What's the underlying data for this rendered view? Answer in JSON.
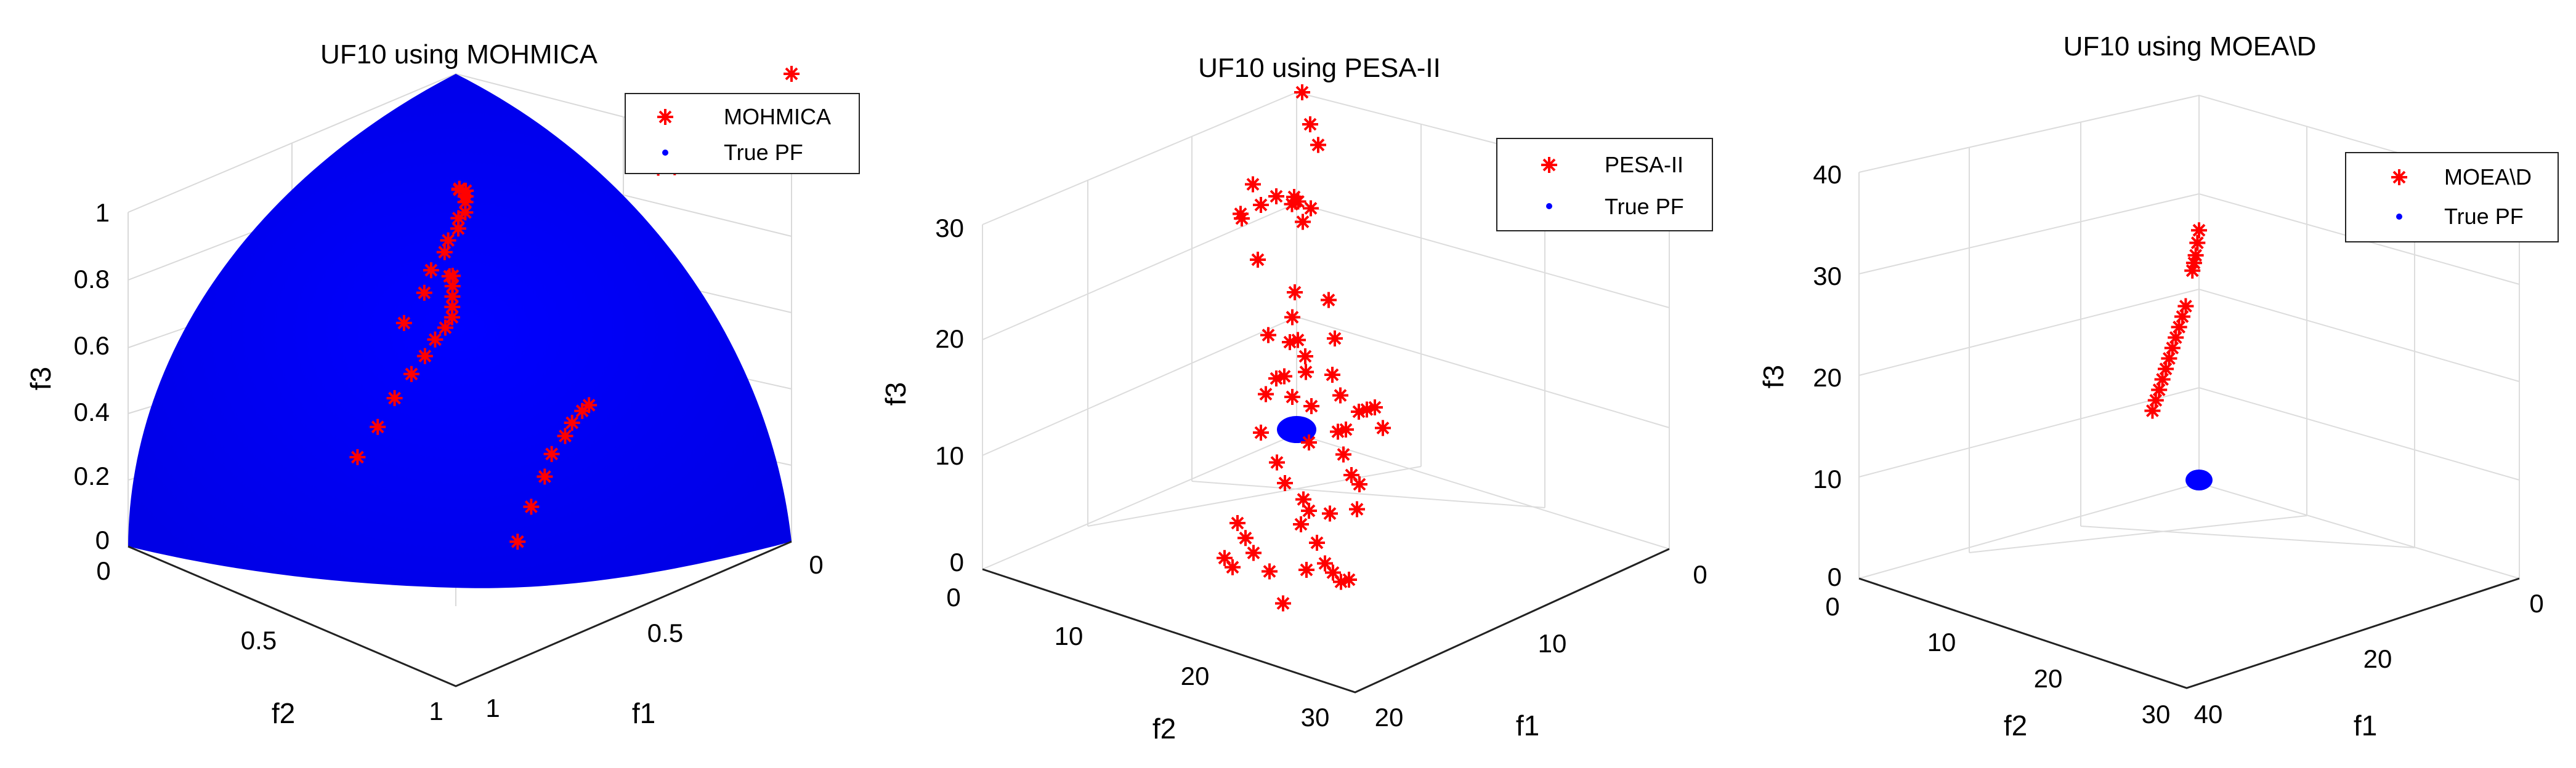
{
  "chart_data": [
    {
      "type": "scatter",
      "title": "UF10 using MOHMICA",
      "xlabel": "f1",
      "ylabel": "f2",
      "zlabel": "f3",
      "xlim": [
        0,
        1
      ],
      "ylim": [
        0,
        1
      ],
      "zlim": [
        0,
        1
      ],
      "xticks": [
        "0",
        "0.5",
        "1"
      ],
      "yticks": [
        "0",
        "0.5",
        "1"
      ],
      "zticks": [
        "0",
        "0.2",
        "0.4",
        "0.6",
        "0.8",
        "1"
      ],
      "legend": [
        "MOHMICA",
        "True PF"
      ],
      "legend_position": "top-right",
      "grid": true,
      "series": [
        {
          "name": "MOHMICA",
          "marker": "*",
          "color": "#ff0000",
          "points": [
            [
              0.0,
              0.0,
              1.0
            ],
            [
              0.05,
              0.12,
              0.88
            ],
            [
              0.07,
              0.16,
              0.87
            ],
            [
              0.1,
              0.17,
              0.86
            ],
            [
              0.14,
              0.14,
              0.85
            ],
            [
              0.16,
              0.12,
              0.85
            ],
            [
              0.19,
              0.08,
              0.86
            ],
            [
              0.1,
              0.45,
              0.79
            ],
            [
              0.14,
              0.43,
              0.8
            ],
            [
              0.18,
              0.4,
              0.81
            ],
            [
              0.22,
              0.38,
              0.81
            ],
            [
              0.26,
              0.36,
              0.81
            ],
            [
              0.3,
              0.34,
              0.8
            ],
            [
              0.34,
              0.33,
              0.8
            ],
            [
              0.38,
              0.31,
              0.79
            ],
            [
              0.43,
              0.3,
              0.78
            ],
            [
              0.48,
              0.28,
              0.77
            ],
            [
              0.54,
              0.27,
              0.75
            ],
            [
              0.6,
              0.25,
              0.72
            ],
            [
              0.68,
              0.24,
              0.68
            ],
            [
              0.09,
              0.47,
              0.6
            ],
            [
              0.12,
              0.45,
              0.61
            ],
            [
              0.16,
              0.43,
              0.6
            ],
            [
              0.2,
              0.41,
              0.59
            ],
            [
              0.24,
              0.39,
              0.58
            ],
            [
              0.28,
              0.37,
              0.57
            ],
            [
              0.32,
              0.36,
              0.56
            ],
            [
              0.37,
              0.35,
              0.55
            ],
            [
              0.42,
              0.34,
              0.53
            ],
            [
              0.48,
              0.33,
              0.51
            ],
            [
              0.55,
              0.32,
              0.48
            ],
            [
              0.62,
              0.31,
              0.44
            ],
            [
              0.7,
              0.3,
              0.4
            ],
            [
              0.05,
              0.28,
              0.31
            ],
            [
              0.09,
              0.27,
              0.31
            ],
            [
              0.14,
              0.26,
              0.3
            ],
            [
              0.2,
              0.24,
              0.29
            ],
            [
              0.26,
              0.23,
              0.27
            ],
            [
              0.32,
              0.21,
              0.24
            ],
            [
              0.4,
              0.19,
              0.2
            ],
            [
              0.48,
              0.17,
              0.15
            ]
          ]
        },
        {
          "name": "True PF",
          "marker": ".",
          "color": "#0000ff",
          "surface": "sphere f1^2+f2^2+f3^2=1, f1,f2,f3 >= 0"
        }
      ]
    },
    {
      "type": "scatter",
      "title": "UF10 using PESA-II",
      "xlabel": "f1",
      "ylabel": "f2",
      "zlabel": "f3",
      "xlim": [
        0,
        20
      ],
      "ylim": [
        0,
        30
      ],
      "zlim": [
        0,
        30
      ],
      "xticks": [
        "0",
        "10",
        "20"
      ],
      "yticks": [
        "0",
        "10",
        "20",
        "30"
      ],
      "zticks": [
        "0",
        "10",
        "20",
        "30"
      ],
      "legend": [
        "PESA-II",
        "True PF"
      ],
      "legend_position": "top-right",
      "grid": true,
      "series": [
        {
          "name": "PESA-II",
          "marker": "*",
          "color": "#ff0000",
          "points": [
            [
              2.0,
              3.0,
              32.0
            ],
            [
              3.0,
              4.0,
              30.0
            ],
            [
              4.0,
              5.0,
              29.0
            ],
            [
              1.0,
              7.0,
              22.0
            ],
            [
              1.5,
              8.0,
              23.0
            ],
            [
              3.0,
              9.0,
              20.0
            ],
            [
              0.5,
              1.0,
              21.0
            ],
            [
              0.6,
              1.5,
              21.0
            ],
            [
              1.0,
              2.0,
              22.0
            ],
            [
              1.5,
              2.5,
              22.0
            ],
            [
              4.0,
              4.0,
              15.0
            ],
            [
              4.0,
              9.0,
              26.0
            ],
            [
              6.0,
              10.0,
              25.0
            ],
            [
              7.0,
              11.0,
              27.0
            ],
            [
              5.0,
              13.0,
              29.0
            ],
            [
              6.0,
              14.0,
              28.0
            ],
            [
              5.0,
              9.0,
              18.0
            ],
            [
              6.0,
              11.0,
              17.0
            ],
            [
              8.0,
              14.0,
              17.0
            ],
            [
              9.0,
              15.0,
              15.0
            ],
            [
              7.0,
              13.0,
              16.0
            ],
            [
              10.0,
              14.0,
              18.0
            ],
            [
              11.0,
              16.0,
              16.0
            ],
            [
              12.0,
              17.0,
              15.0
            ],
            [
              13.0,
              17.0,
              14.0
            ],
            [
              11.0,
              18.0,
              14.0
            ],
            [
              14.0,
              18.0,
              15.0
            ],
            [
              15.0,
              19.0,
              16.0
            ],
            [
              14.0,
              20.0,
              14.0
            ],
            [
              13.0,
              19.0,
              13.0
            ],
            [
              12.0,
              20.0,
              12.0
            ],
            [
              16.0,
              20.0,
              15.0
            ],
            [
              15.0,
              22.0,
              13.0
            ],
            [
              16.0,
              23.0,
              12.0
            ],
            [
              17.0,
              24.0,
              12.0
            ],
            [
              18.0,
              26.0,
              11.0
            ],
            [
              5.0,
              10.0,
              11.0
            ],
            [
              6.0,
              11.0,
              10.0
            ],
            [
              4.0,
              9.0,
              10.0
            ],
            [
              5.0,
              8.0,
              12.0
            ],
            [
              3.0,
              8.0,
              13.0
            ],
            [
              4.0,
              10.0,
              9.0
            ],
            [
              6.0,
              14.0,
              8.0
            ],
            [
              8.0,
              16.0,
              7.0
            ],
            [
              9.0,
              17.0,
              6.0
            ],
            [
              10.0,
              17.0,
              5.0
            ],
            [
              11.0,
              19.0,
              4.0
            ],
            [
              12.0,
              18.0,
              5.0
            ],
            [
              12.0,
              20.0,
              6.0
            ],
            [
              13.0,
              21.0,
              4.0
            ],
            [
              14.0,
              22.0,
              3.0
            ],
            [
              15.0,
              23.0,
              3.0
            ],
            [
              16.0,
              24.0,
              3.0
            ],
            [
              17.0,
              25.0,
              4.0
            ],
            [
              8.0,
              19.0,
              1.5
            ],
            [
              9.0,
              20.0,
              1.0
            ],
            [
              11.0,
              22.0,
              1.0
            ],
            [
              13.0,
              22.0,
              2.0
            ],
            [
              7.0,
              18.0,
              2.0
            ],
            [
              8.0,
              21.0,
              0.5
            ],
            [
              9.0,
              22.0,
              0.5
            ],
            [
              14.0,
              26.0,
              1.0
            ]
          ]
        },
        {
          "name": "True PF",
          "marker": ".",
          "color": "#0000ff",
          "surface": "sphere f1^2+f2^2+f3^2=1, f1,f2,f3 >= 0"
        }
      ]
    },
    {
      "type": "scatter",
      "title": "UF10 using MOEA\\D",
      "xlabel": "f1",
      "ylabel": "f2",
      "zlabel": "f3",
      "xlim": [
        0,
        40
      ],
      "ylim": [
        0,
        30
      ],
      "zlim": [
        0,
        40
      ],
      "xticks": [
        "0",
        "20",
        "40"
      ],
      "yticks": [
        "0",
        "10",
        "20",
        "30"
      ],
      "zticks": [
        "0",
        "10",
        "20",
        "30",
        "40"
      ],
      "legend": [
        "MOEA\\D",
        "True PF"
      ],
      "legend_position": "top-right",
      "grid": true,
      "series": [
        {
          "name": "MOEA\\D",
          "marker": "*",
          "color": "#ff0000",
          "points": [
            [
              0.0,
              0.0,
              26.0
            ],
            [
              0.5,
              0.5,
              25.0
            ],
            [
              1.0,
              1.0,
              24.0
            ],
            [
              1.5,
              1.5,
              23.5
            ],
            [
              2.0,
              2.0,
              23.0
            ],
            [
              4.0,
              4.0,
              20.5
            ],
            [
              5.0,
              5.0,
              20.0
            ],
            [
              6.0,
              6.0,
              19.5
            ],
            [
              7.0,
              7.0,
              19.0
            ],
            [
              8.0,
              8.0,
              18.5
            ],
            [
              9.0,
              9.0,
              18.0
            ],
            [
              10.0,
              10.0,
              17.5
            ],
            [
              11.0,
              11.0,
              17.0
            ],
            [
              12.0,
              12.0,
              16.5
            ],
            [
              13.0,
              13.0,
              16.0
            ],
            [
              14.0,
              14.0,
              15.5
            ]
          ]
        },
        {
          "name": "True PF",
          "marker": ".",
          "color": "#0000ff",
          "surface": "sphere f1^2+f2^2+f3^2=1, f1,f2,f3 >= 0"
        }
      ]
    }
  ]
}
